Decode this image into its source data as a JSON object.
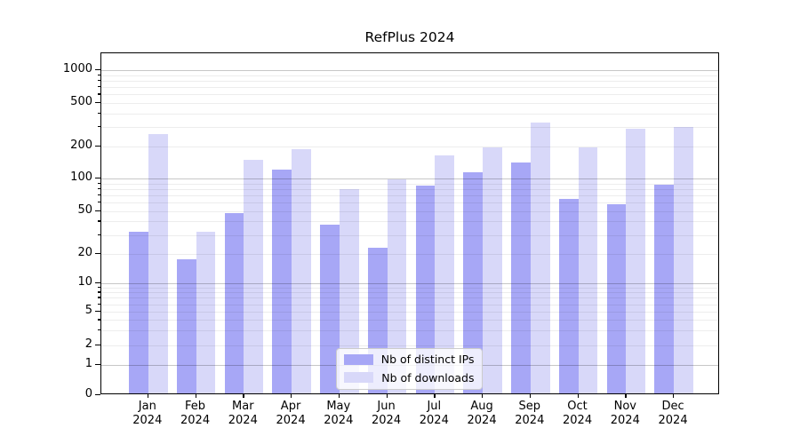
{
  "title": "RefPlus 2024",
  "year_label": "2024",
  "colors": {
    "distinct_ips_bar": "#a7a7f6",
    "downloads_bar": "#d8d8f9",
    "major_grid": "rgba(0,0,0,0.22)",
    "minor_grid": "rgba(0,0,0,0.07)"
  },
  "y_axis": {
    "tick_labels": [
      "0",
      "1",
      "2",
      "5",
      "10",
      "20",
      "50",
      "100",
      "200",
      "500",
      "1000"
    ],
    "tick_values": [
      0,
      1,
      2,
      5,
      10,
      20,
      50,
      100,
      200,
      500,
      1000
    ]
  },
  "x_axis": {
    "months": [
      "Jan",
      "Feb",
      "Mar",
      "Apr",
      "May",
      "Jun",
      "Jul",
      "Aug",
      "Sep",
      "Oct",
      "Nov",
      "Dec"
    ]
  },
  "legend": {
    "items": [
      {
        "label": "Nb of distinct IPs",
        "color": "#a7a7f6"
      },
      {
        "label": "Nb of downloads",
        "color": "#d8d8f9"
      }
    ],
    "position": "lower center"
  },
  "chart_data": {
    "type": "bar",
    "title": "RefPlus 2024",
    "categories": [
      "Jan 2024",
      "Feb 2024",
      "Mar 2024",
      "Apr 2024",
      "May 2024",
      "Jun 2024",
      "Jul 2024",
      "Aug 2024",
      "Sep 2024",
      "Oct 2024",
      "Nov 2024",
      "Dec 2024"
    ],
    "series": [
      {
        "name": "Nb of distinct IPs",
        "color": "#a7a7f6",
        "values": [
          31,
          17,
          46,
          117,
          36,
          22,
          83,
          110,
          135,
          62,
          55,
          85
        ]
      },
      {
        "name": "Nb of downloads",
        "color": "#d8d8f9",
        "values": [
          250,
          31,
          143,
          180,
          77,
          95,
          157,
          186,
          320,
          186,
          280,
          290
        ]
      }
    ],
    "xlabel": "",
    "ylabel": "",
    "yscale": "symlog",
    "yticks": [
      0,
      1,
      2,
      5,
      10,
      20,
      50,
      100,
      200,
      500,
      1000
    ],
    "ylim": [
      0,
      1400
    ],
    "grid": "major and minor horizontal, drawn above bars",
    "legend_position": "lower center"
  }
}
